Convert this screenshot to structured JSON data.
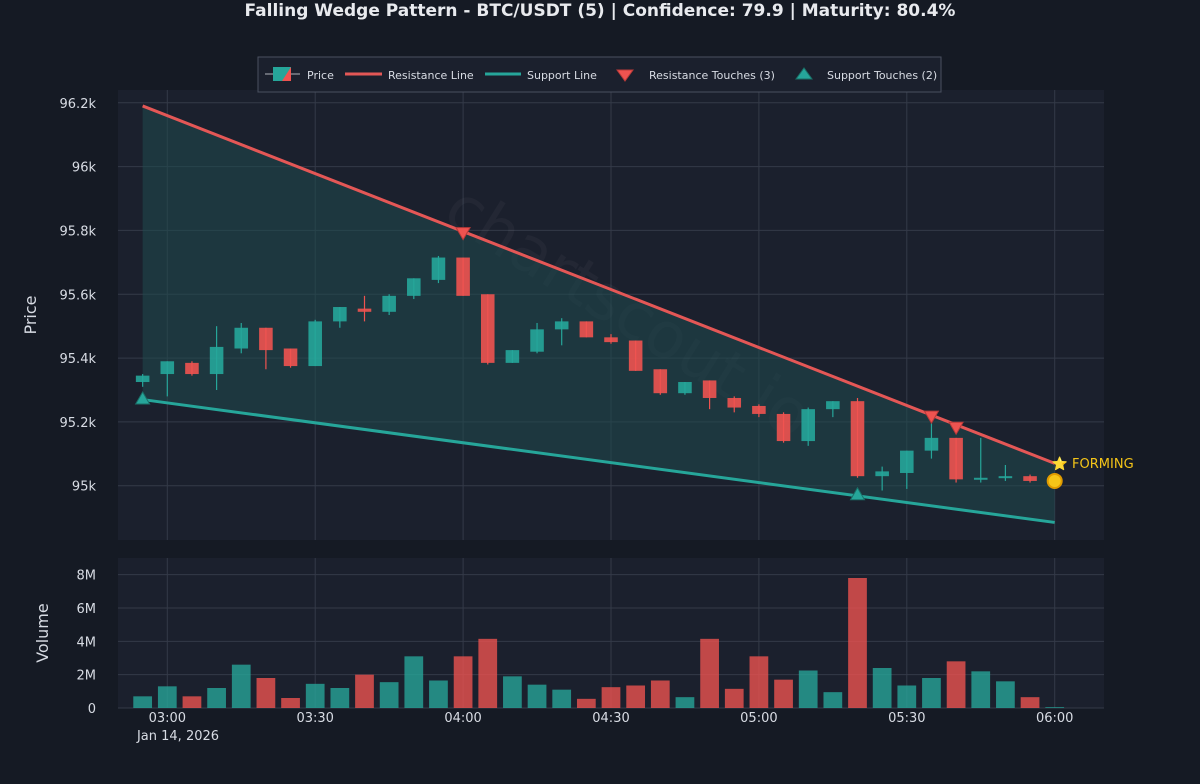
{
  "title": "Falling Wedge Pattern - BTC/USDT (5) | Confidence: 79.9 | Maturity: 80.4%",
  "watermark": "chartscout.io",
  "status_label": "⭐ FORMING",
  "legend": [
    {
      "key": "price",
      "label": "Price"
    },
    {
      "key": "resistance",
      "label": "Resistance Line"
    },
    {
      "key": "support",
      "label": "Support Line"
    },
    {
      "key": "resistance_touches",
      "label": "Resistance Touches (3)"
    },
    {
      "key": "support_touches",
      "label": "Support Touches (2)"
    }
  ],
  "colors": {
    "background": "#151a24",
    "plot_background": "#1b202d",
    "grid": "#343a48",
    "up": "#26a69a",
    "down": "#ef5350",
    "resistance": "#e45756",
    "support": "#26a69a",
    "wedge_fill": "#1f4a4e",
    "status": "#f5c518",
    "text": "#d8dce4"
  },
  "chart_data": [
    {
      "type": "candlestick",
      "ylabel": "Price",
      "ylim": [
        94830,
        96240
      ],
      "y_ticks": [
        95000,
        95200,
        95400,
        95600,
        95800,
        96000,
        96200
      ],
      "y_tick_labels": [
        "95k",
        "95.2k",
        "95.4k",
        "95.6k",
        "95.8k",
        "96k",
        "96.2k"
      ],
      "x_ticks": [
        "03:00",
        "03:30",
        "04:00",
        "04:30",
        "05:00",
        "05:30",
        "06:00"
      ],
      "x_date_label": "Jan 14, 2026",
      "xlim": [
        "02:50",
        "06:10"
      ],
      "candles": [
        {
          "t": "02:55",
          "open": 95325,
          "high": 95350,
          "low": 95310,
          "close": 95345
        },
        {
          "t": "03:00",
          "open": 95350,
          "high": 95390,
          "low": 95280,
          "close": 95390
        },
        {
          "t": "03:05",
          "open": 95385,
          "high": 95390,
          "low": 95345,
          "close": 95350
        },
        {
          "t": "03:10",
          "open": 95350,
          "high": 95500,
          "low": 95300,
          "close": 95435
        },
        {
          "t": "03:15",
          "open": 95430,
          "high": 95510,
          "low": 95415,
          "close": 95495
        },
        {
          "t": "03:20",
          "open": 95495,
          "high": 95495,
          "low": 95365,
          "close": 95425
        },
        {
          "t": "03:25",
          "open": 95430,
          "high": 95430,
          "low": 95370,
          "close": 95375
        },
        {
          "t": "03:30",
          "open": 95375,
          "high": 95520,
          "low": 95375,
          "close": 95515
        },
        {
          "t": "03:35",
          "open": 95515,
          "high": 95560,
          "low": 95495,
          "close": 95560
        },
        {
          "t": "03:40",
          "open": 95555,
          "high": 95595,
          "low": 95515,
          "close": 95545
        },
        {
          "t": "03:45",
          "open": 95545,
          "high": 95600,
          "low": 95535,
          "close": 95595
        },
        {
          "t": "03:50",
          "open": 95595,
          "high": 95650,
          "low": 95585,
          "close": 95650
        },
        {
          "t": "03:55",
          "open": 95645,
          "high": 95720,
          "low": 95635,
          "close": 95715
        },
        {
          "t": "04:00",
          "open": 95715,
          "high": 95715,
          "low": 95595,
          "close": 95595
        },
        {
          "t": "04:05",
          "open": 95600,
          "high": 95600,
          "low": 95380,
          "close": 95385
        },
        {
          "t": "04:10",
          "open": 95385,
          "high": 95425,
          "low": 95385,
          "close": 95425
        },
        {
          "t": "04:15",
          "open": 95420,
          "high": 95510,
          "low": 95415,
          "close": 95490
        },
        {
          "t": "04:20",
          "open": 95490,
          "high": 95525,
          "low": 95440,
          "close": 95515
        },
        {
          "t": "04:25",
          "open": 95515,
          "high": 95515,
          "low": 95465,
          "close": 95465
        },
        {
          "t": "04:30",
          "open": 95465,
          "high": 95475,
          "low": 95445,
          "close": 95450
        },
        {
          "t": "04:35",
          "open": 95455,
          "high": 95455,
          "low": 95360,
          "close": 95360
        },
        {
          "t": "04:40",
          "open": 95365,
          "high": 95365,
          "low": 95285,
          "close": 95290
        },
        {
          "t": "04:45",
          "open": 95290,
          "high": 95325,
          "low": 95285,
          "close": 95325
        },
        {
          "t": "04:50",
          "open": 95330,
          "high": 95330,
          "low": 95240,
          "close": 95275
        },
        {
          "t": "04:55",
          "open": 95275,
          "high": 95280,
          "low": 95230,
          "close": 95245
        },
        {
          "t": "05:00",
          "open": 95250,
          "high": 95255,
          "low": 95215,
          "close": 95225
        },
        {
          "t": "05:05",
          "open": 95225,
          "high": 95230,
          "low": 95135,
          "close": 95140
        },
        {
          "t": "05:10",
          "open": 95140,
          "high": 95245,
          "low": 95125,
          "close": 95240
        },
        {
          "t": "05:15",
          "open": 95240,
          "high": 95265,
          "low": 95215,
          "close": 95265
        },
        {
          "t": "05:20",
          "open": 95265,
          "high": 95275,
          "low": 95025,
          "close": 95030
        },
        {
          "t": "05:25",
          "open": 95030,
          "high": 95060,
          "low": 94985,
          "close": 95045
        },
        {
          "t": "05:30",
          "open": 95040,
          "high": 95110,
          "low": 94990,
          "close": 95110
        },
        {
          "t": "05:35",
          "open": 95110,
          "high": 95195,
          "low": 95085,
          "close": 95150
        },
        {
          "t": "05:40",
          "open": 95150,
          "high": 95150,
          "low": 95010,
          "close": 95020
        },
        {
          "t": "05:45",
          "open": 95020,
          "high": 95150,
          "low": 95010,
          "close": 95025
        },
        {
          "t": "05:50",
          "open": 95025,
          "high": 95065,
          "low": 95015,
          "close": 95030
        },
        {
          "t": "05:55",
          "open": 95030,
          "high": 95035,
          "low": 95010,
          "close": 95015
        }
      ],
      "resistance_line": {
        "start": {
          "t": "02:55",
          "y": 96190
        },
        "end": {
          "t": "06:00",
          "y": 95070
        }
      },
      "support_line": {
        "start": {
          "t": "02:55",
          "y": 95270
        },
        "end": {
          "t": "06:00",
          "y": 94885
        }
      },
      "resistance_touches": [
        {
          "t": "04:00",
          "y": 95790
        },
        {
          "t": "05:35",
          "y": 95215
        },
        {
          "t": "05:40",
          "y": 95180
        }
      ],
      "support_touches": [
        {
          "t": "02:55",
          "y": 95275
        },
        {
          "t": "05:20",
          "y": 94975
        }
      ],
      "current_point": {
        "t": "06:00",
        "y": 95015
      }
    },
    {
      "type": "bar",
      "ylabel": "Volume",
      "ylim": [
        0,
        9000000
      ],
      "y_ticks": [
        0,
        2000000,
        4000000,
        6000000,
        8000000
      ],
      "y_tick_labels": [
        "0",
        "2M",
        "4M",
        "6M",
        "8M"
      ],
      "categories": [
        "02:55",
        "03:00",
        "03:05",
        "03:10",
        "03:15",
        "03:20",
        "03:25",
        "03:30",
        "03:35",
        "03:40",
        "03:45",
        "03:50",
        "03:55",
        "04:00",
        "04:05",
        "04:10",
        "04:15",
        "04:20",
        "04:25",
        "04:30",
        "04:35",
        "04:40",
        "04:45",
        "04:50",
        "04:55",
        "05:00",
        "05:05",
        "05:10",
        "05:15",
        "05:20",
        "05:25",
        "05:30",
        "05:35",
        "05:40",
        "05:45",
        "05:50",
        "05:55",
        "06:00"
      ],
      "values": [
        700000,
        1300000,
        700000,
        1200000,
        2600000,
        1800000,
        600000,
        1450000,
        1200000,
        2000000,
        1550000,
        3100000,
        1650000,
        3100000,
        4150000,
        1900000,
        1400000,
        1100000,
        550000,
        1250000,
        1350000,
        1650000,
        650000,
        4150000,
        1150000,
        3100000,
        1700000,
        2250000,
        950000,
        7800000,
        2400000,
        1350000,
        1800000,
        2800000,
        2200000,
        1600000,
        650000,
        50000
      ],
      "directions": [
        "up",
        "up",
        "down",
        "up",
        "up",
        "down",
        "down",
        "up",
        "up",
        "down",
        "up",
        "up",
        "up",
        "down",
        "down",
        "up",
        "up",
        "up",
        "down",
        "down",
        "down",
        "down",
        "up",
        "down",
        "down",
        "down",
        "down",
        "up",
        "up",
        "down",
        "up",
        "up",
        "up",
        "down",
        "up",
        "up",
        "down",
        "up"
      ]
    }
  ]
}
